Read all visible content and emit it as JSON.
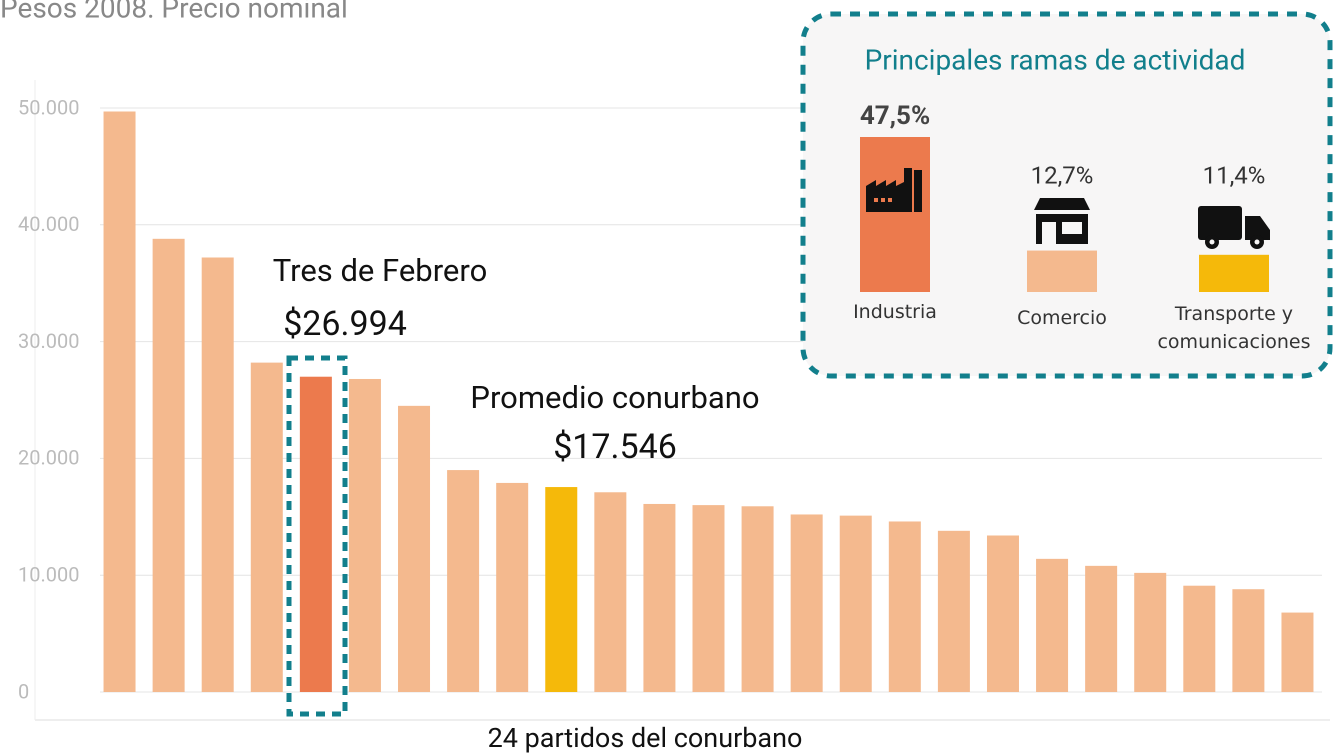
{
  "chart_data": [
    {
      "type": "bar",
      "title": "Pesos 2008. Precio nominal",
      "xlabel": "24 partidos del conurbano",
      "categories": [
        null,
        null,
        null,
        null,
        "Tres de Febrero",
        null,
        null,
        null,
        null,
        "Promedio conurbano",
        null,
        null,
        null,
        null,
        null,
        null,
        null,
        null,
        null,
        null,
        null,
        null,
        null,
        null,
        null
      ],
      "values": [
        49700,
        38800,
        37200,
        28200,
        26994,
        26800,
        24500,
        19000,
        17900,
        17546,
        17100,
        16100,
        16000,
        15900,
        15200,
        15100,
        14600,
        13800,
        13400,
        11400,
        10800,
        10200,
        9100,
        8800,
        6800
      ],
      "value_labels": [
        null,
        null,
        null,
        null,
        "$26.994",
        null,
        null,
        null,
        null,
        "$17.546",
        null,
        null,
        null,
        null,
        null,
        null,
        null,
        null,
        null,
        null,
        null,
        null,
        null,
        null,
        null
      ],
      "colors": [
        "#f4b98e",
        "#f4b98e",
        "#f4b98e",
        "#f4b98e",
        "#ec7a4d",
        "#f4b98e",
        "#f4b98e",
        "#f4b98e",
        "#f4b98e",
        "#f5b90a",
        "#f4b98e",
        "#f4b98e",
        "#f4b98e",
        "#f4b98e",
        "#f4b98e",
        "#f4b98e",
        "#f4b98e",
        "#f4b98e",
        "#f4b98e",
        "#f4b98e",
        "#f4b98e",
        "#f4b98e",
        "#f4b98e",
        "#f4b98e",
        "#f4b98e"
      ],
      "ylim": [
        0,
        50000
      ],
      "yticks": [
        0,
        {
          "value": 10000,
          "label": "10.000"
        },
        {
          "value": 20000,
          "label": "20.000"
        },
        {
          "value": 30000,
          "label": "30.000"
        },
        {
          "value": 40000,
          "label": "40.000"
        },
        {
          "value": 50000,
          "label": "50.000"
        }
      ],
      "grid": true
    },
    {
      "type": "bar",
      "title": "Principales ramas de actividad",
      "categories": [
        "Industria",
        "Comercio",
        "Transporte y comunicaciones"
      ],
      "values": [
        47.5,
        12.7,
        11.4
      ],
      "value_labels": [
        "47,5%",
        "12,7%",
        "11,4%"
      ],
      "colors": [
        "#ec7a4d",
        "#f4b98e",
        "#f5b90a"
      ]
    }
  ]
}
